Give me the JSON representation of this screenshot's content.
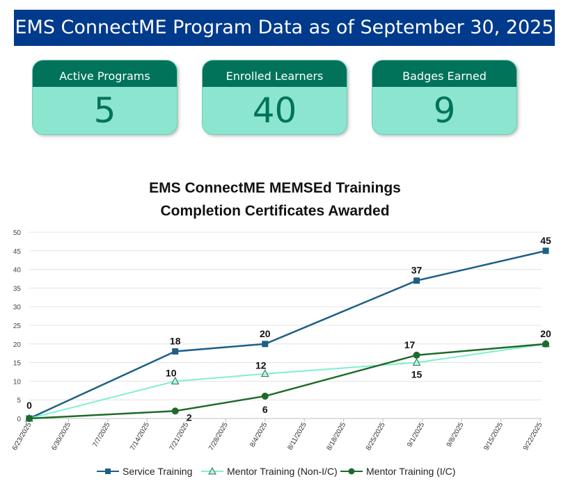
{
  "banner": {
    "title": "EMS ConnectME Program Data as of September 30, 2025"
  },
  "kpis": [
    {
      "label": "Active Programs",
      "value": "5"
    },
    {
      "label": "Enrolled Learners",
      "value": "40"
    },
    {
      "label": "Badges Earned",
      "value": "9"
    }
  ],
  "colors": {
    "banner_bg": "#003a8c",
    "kpi_header": "#00735a",
    "kpi_body": "#8ce6cf",
    "service": "#1f5f86",
    "mentor_non_ic": "#7ff0cf",
    "mentor_ic": "#1d6b2a"
  },
  "chart_data": {
    "type": "line",
    "title": [
      "EMS ConnectME MEMSEd Trainings",
      "Completion Certificates Awarded"
    ],
    "xlabel": "",
    "ylabel": "",
    "ylim": [
      0,
      50
    ],
    "yticks": [
      0,
      5,
      10,
      15,
      20,
      25,
      30,
      35,
      40,
      45,
      50
    ],
    "xticks": [
      "6/23/2025",
      "6/30/2025",
      "7/7/2025",
      "7/14/2025",
      "7/21/2025",
      "7/28/2025",
      "8/4/2025",
      "8/11/2025",
      "8/18/2025",
      "8/25/2025",
      "9/1/2025",
      "9/8/2025",
      "9/15/2025",
      "9/22/2025"
    ],
    "grid": true,
    "legend_position": "bottom",
    "series": [
      {
        "name": "Service Training",
        "marker": "square",
        "points": [
          [
            "6/23/2025",
            0
          ],
          [
            "7/19/2025",
            18
          ],
          [
            "8/4/2025",
            20
          ],
          [
            "8/31/2025",
            37
          ],
          [
            "9/23/2025",
            45
          ]
        ],
        "labels": [
          "0",
          "18",
          "20",
          "37",
          "45"
        ]
      },
      {
        "name": "Mentor Training (Non-I/C)",
        "marker": "triangle",
        "points": [
          [
            "6/23/2025",
            0
          ],
          [
            "7/19/2025",
            10
          ],
          [
            "8/4/2025",
            12
          ],
          [
            "8/31/2025",
            15
          ],
          [
            "9/23/2025",
            20
          ]
        ],
        "labels": [
          "",
          "10",
          "12",
          "15",
          ""
        ]
      },
      {
        "name": "Mentor Training (I/C)",
        "marker": "circle",
        "points": [
          [
            "6/23/2025",
            0
          ],
          [
            "7/19/2025",
            2
          ],
          [
            "8/4/2025",
            6
          ],
          [
            "8/31/2025",
            17
          ],
          [
            "9/23/2025",
            20
          ]
        ],
        "labels": [
          "",
          "2",
          "6",
          "17",
          "20"
        ]
      }
    ]
  }
}
